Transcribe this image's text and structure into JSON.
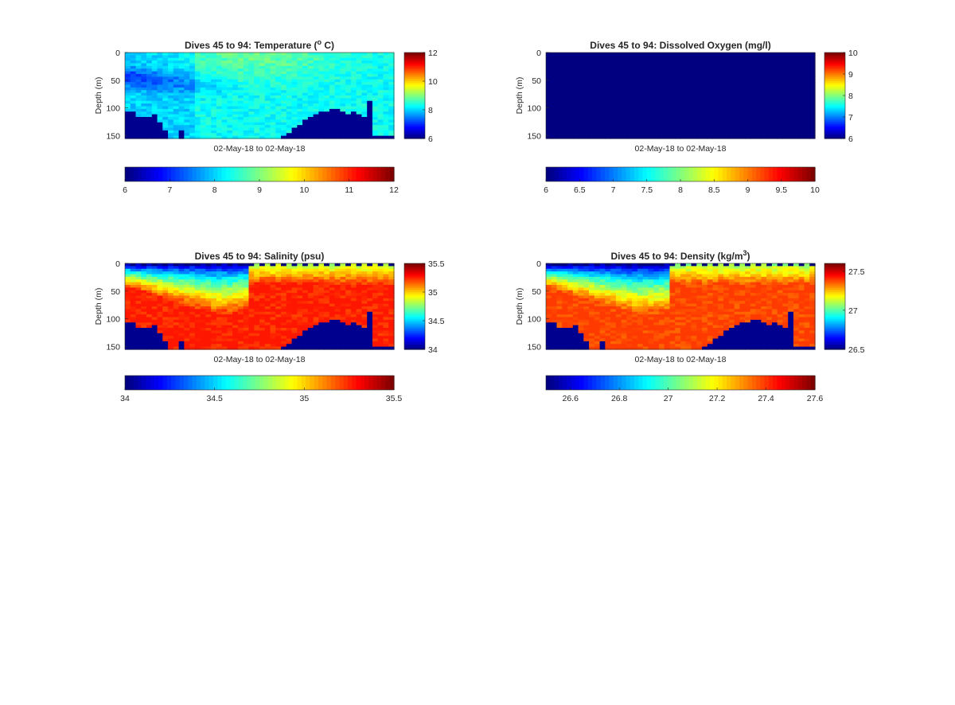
{
  "figure": {
    "background": "#ffffff",
    "colormap": "jet",
    "land_color": "#00008f"
  },
  "chart_data": [
    {
      "type": "heatmap",
      "id": "temperature",
      "title_pre": "Dives 45 to 94: Temperature (",
      "title_sup": "o",
      "title_post": " C)",
      "xlabel": "02-May-18 to 02-May-18",
      "ylabel": "Depth (m)",
      "yticks": [
        0,
        50,
        100,
        150
      ],
      "ylim": [
        0,
        155
      ],
      "n_dives": 50,
      "clim": [
        6,
        12
      ],
      "colorbar_ticks": [
        "12",
        "10",
        "8",
        "6"
      ],
      "colorbar_tick_values": [
        12,
        10,
        8,
        6
      ],
      "h_colorbar_ticks": [
        "6",
        "7",
        "8",
        "9",
        "10",
        "11",
        "12"
      ],
      "h_colorbar_tick_values": [
        6,
        7,
        8,
        9,
        10,
        11,
        12
      ],
      "surface_value": 7.7,
      "deep_value": 8.3,
      "cold_layer_value": 7.4,
      "warm_layer_value": 8.7,
      "bottom_depth_m": [
        108,
        106,
        118,
        118,
        118,
        112,
        126,
        140,
        155,
        155,
        142,
        155,
        155,
        155,
        155,
        155,
        155,
        155,
        155,
        155,
        155,
        155,
        155,
        155,
        155,
        155,
        155,
        155,
        155,
        150,
        145,
        138,
        130,
        123,
        117,
        110,
        107,
        105,
        102,
        104,
        108,
        110,
        106,
        112,
        118,
        88,
        148,
        150,
        152,
        152
      ],
      "surface_gaps": [
        0,
        11,
        35,
        48
      ]
    },
    {
      "type": "heatmap",
      "id": "oxygen",
      "title_pre": "Dives 45 to 94: Dissolved Oxygen (mg/l)",
      "title_sup": "",
      "title_post": "",
      "xlabel": "02-May-18 to 02-May-18",
      "ylabel": "Depth (m)",
      "yticks": [
        0,
        50,
        100,
        150
      ],
      "ylim": [
        0,
        155
      ],
      "n_dives": 50,
      "clim": [
        6,
        10
      ],
      "colorbar_ticks": [
        "10",
        "9",
        "8",
        "7",
        "6"
      ],
      "colorbar_tick_values": [
        10,
        9,
        8,
        7,
        6
      ],
      "h_colorbar_ticks": [
        "6",
        "6.5",
        "7",
        "7.5",
        "8",
        "8.5",
        "9",
        "9.5",
        "10"
      ],
      "h_colorbar_tick_values": [
        6,
        6.5,
        7,
        7.5,
        8,
        8.5,
        9,
        9.5,
        10
      ],
      "uniform_value": 6
    },
    {
      "type": "heatmap",
      "id": "salinity",
      "title_pre": "Dives 45 to 94: Salinity (psu)",
      "title_sup": "",
      "title_post": "",
      "xlabel": "02-May-18 to 02-May-18",
      "ylabel": "Depth (m)",
      "yticks": [
        0,
        50,
        100,
        150
      ],
      "ylim": [
        0,
        155
      ],
      "n_dives": 50,
      "clim": [
        34,
        35.5
      ],
      "colorbar_ticks": [
        "35.5",
        "35",
        "34.5",
        "34"
      ],
      "colorbar_tick_values": [
        35.5,
        35,
        34.5,
        34
      ],
      "h_colorbar_ticks": [
        "34",
        "34.5",
        "35",
        "35.5"
      ],
      "h_colorbar_tick_values": [
        34,
        34.5,
        35,
        35.5
      ],
      "surface_value": 34.1,
      "deep_value": 35.28,
      "bottom_depth_m": [
        108,
        106,
        118,
        118,
        118,
        112,
        126,
        140,
        155,
        155,
        142,
        155,
        155,
        155,
        155,
        155,
        155,
        155,
        155,
        155,
        155,
        155,
        155,
        155,
        155,
        155,
        155,
        155,
        155,
        150,
        145,
        138,
        130,
        123,
        117,
        110,
        107,
        105,
        102,
        104,
        108,
        110,
        106,
        112,
        118,
        88,
        148,
        150,
        152,
        152
      ]
    },
    {
      "type": "heatmap",
      "id": "density",
      "title_pre": "Dives 45 to 94: Density (kg/m",
      "title_sup": "3",
      "title_post": ")",
      "xlabel": "02-May-18 to 02-May-18",
      "ylabel": "Depth (m)",
      "yticks": [
        0,
        50,
        100,
        150
      ],
      "ylim": [
        0,
        155
      ],
      "n_dives": 50,
      "clim": [
        26.5,
        27.6
      ],
      "colorbar_ticks": [
        "27.5",
        "27",
        "26.5"
      ],
      "colorbar_tick_values": [
        27.5,
        27,
        26.5
      ],
      "h_colorbar_ticks": [
        "26.6",
        "26.8",
        "27",
        "27.2",
        "27.4",
        "27.6"
      ],
      "h_colorbar_tick_values": [
        26.6,
        26.8,
        27,
        27.2,
        27.4,
        27.6
      ],
      "surface_value": 26.55,
      "deep_value": 27.4,
      "bottom_depth_m": [
        108,
        106,
        118,
        118,
        118,
        112,
        126,
        140,
        155,
        155,
        142,
        155,
        155,
        155,
        155,
        155,
        155,
        155,
        155,
        155,
        155,
        155,
        155,
        155,
        155,
        155,
        155,
        155,
        155,
        150,
        145,
        138,
        130,
        123,
        117,
        110,
        107,
        105,
        102,
        104,
        108,
        110,
        106,
        112,
        118,
        88,
        148,
        150,
        152,
        152
      ]
    }
  ]
}
